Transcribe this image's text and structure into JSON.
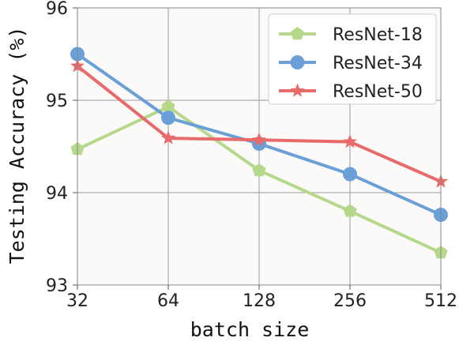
{
  "chart_data": {
    "type": "line",
    "xlabel": "batch size",
    "ylabel": "Testing Accuracy (%)",
    "categories": [
      "32",
      "64",
      "128",
      "256",
      "512"
    ],
    "y_ticks": [
      "93",
      "94",
      "95",
      "96"
    ],
    "ylim": [
      93,
      96
    ],
    "grid": true,
    "legend_position": "top-right",
    "series": [
      {
        "name": "ResNet-18",
        "color": "#b5d88b",
        "marker": "pentagon",
        "values": [
          94.47,
          94.93,
          94.24,
          93.8,
          93.35
        ]
      },
      {
        "name": "ResNet-34",
        "color": "#6a9fd8",
        "marker": "circle",
        "values": [
          95.5,
          94.81,
          94.53,
          94.2,
          93.76
        ]
      },
      {
        "name": "ResNet-50",
        "color": "#e96a6a",
        "marker": "star",
        "values": [
          95.37,
          94.59,
          94.57,
          94.55,
          94.12
        ]
      }
    ]
  }
}
